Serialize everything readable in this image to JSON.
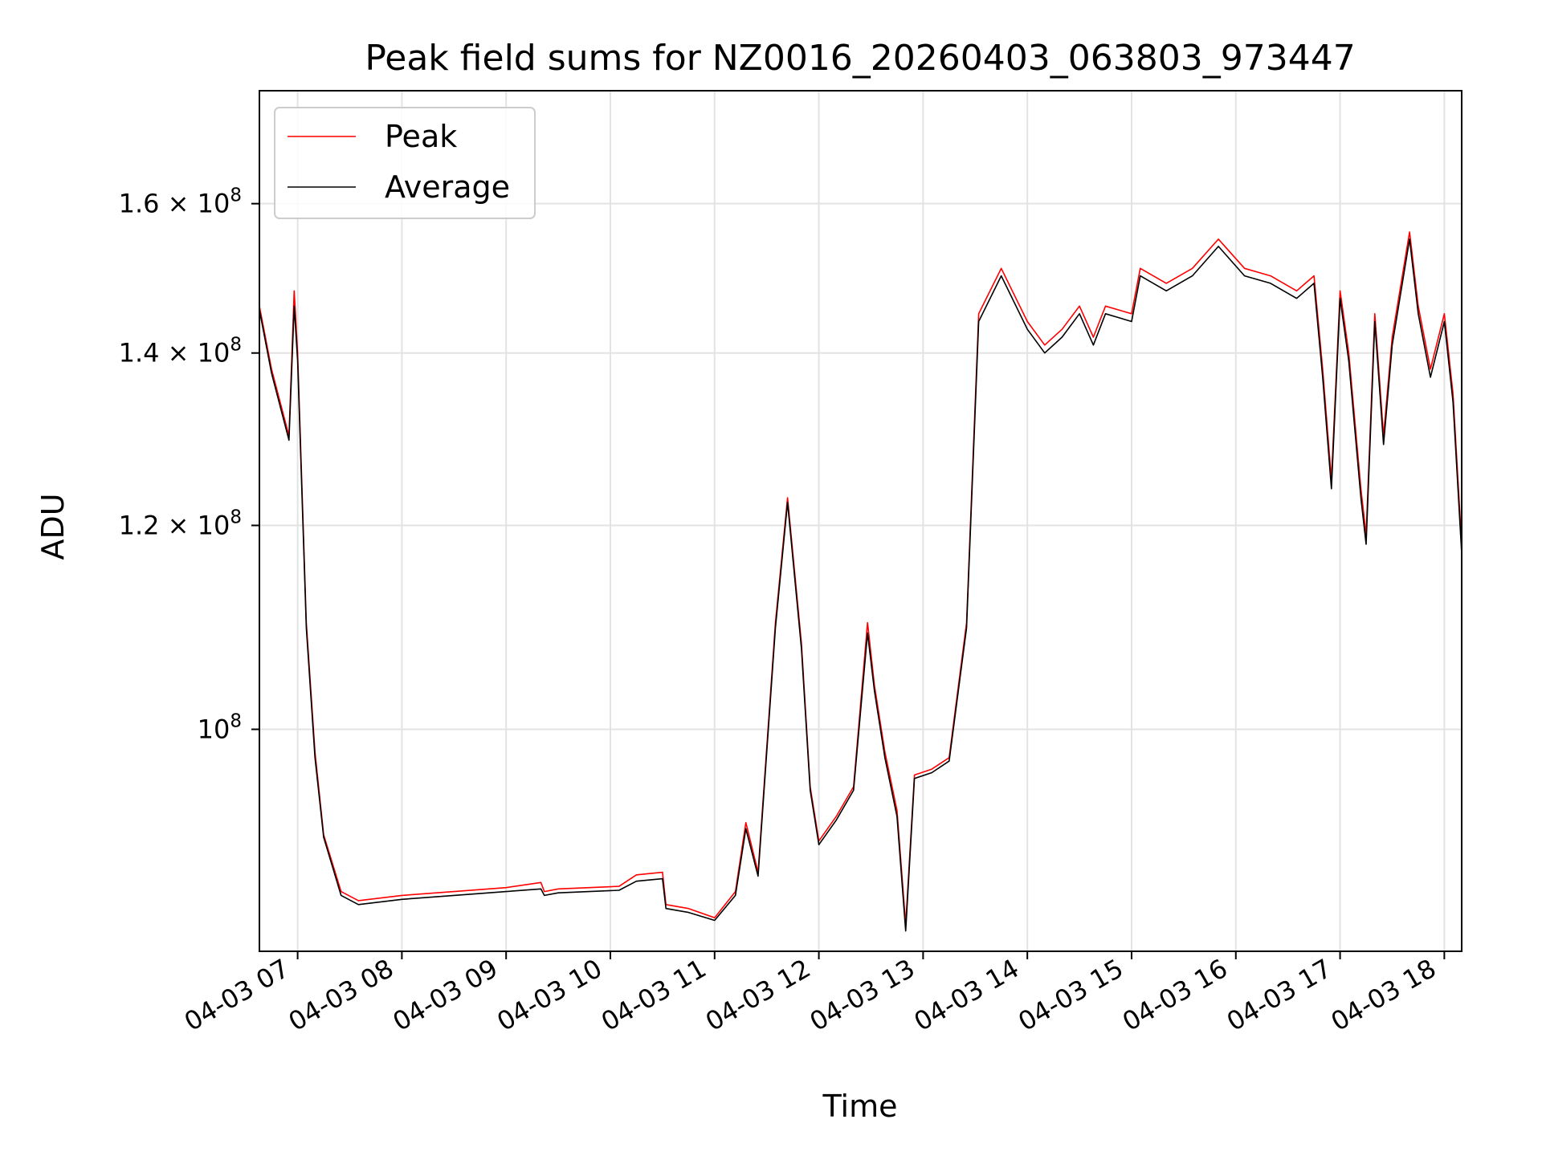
{
  "chart_data": {
    "type": "line",
    "title": "Peak field sums for NZ0016_20260403_063803_973447",
    "xlabel": "Time",
    "ylabel": "ADU",
    "y_scale": "log",
    "ylim": [
      82000000,
      177000000
    ],
    "xlim": [
      "04-03 06:38",
      "04-03 18:10"
    ],
    "grid": true,
    "legend_position": "upper-left",
    "x_ticks": [
      "04-03 07",
      "04-03 08",
      "04-03 09",
      "04-03 10",
      "04-03 11",
      "04-03 12",
      "04-03 13",
      "04-03 14",
      "04-03 15",
      "04-03 16",
      "04-03 17",
      "04-03 18"
    ],
    "y_ticks": [
      {
        "value": 100000000,
        "mantissa": "",
        "exponent": "8"
      },
      {
        "value": 120000000,
        "mantissa": "1.2",
        "exponent": "8"
      },
      {
        "value": 140000000,
        "mantissa": "1.4",
        "exponent": "8"
      },
      {
        "value": 160000000,
        "mantissa": "1.6",
        "exponent": "8"
      }
    ],
    "series": [
      {
        "name": "Peak",
        "color": "#ff0000",
        "points": [
          [
            "04-03 06:38",
            146000000
          ],
          [
            "04-03 06:45",
            138000000
          ],
          [
            "04-03 06:55",
            130000000
          ],
          [
            "04-03 06:58",
            148000000
          ],
          [
            "04-03 07:00",
            140000000
          ],
          [
            "04-03 07:05",
            110000000
          ],
          [
            "04-03 07:10",
            98000000
          ],
          [
            "04-03 07:15",
            91000000
          ],
          [
            "04-03 07:25",
            86500000
          ],
          [
            "04-03 07:35",
            85800000
          ],
          [
            "04-03 08:00",
            86200000
          ],
          [
            "04-03 08:30",
            86500000
          ],
          [
            "04-03 09:00",
            86800000
          ],
          [
            "04-03 09:20",
            87200000
          ],
          [
            "04-03 09:22",
            86500000
          ],
          [
            "04-03 09:30",
            86700000
          ],
          [
            "04-03 10:05",
            86900000
          ],
          [
            "04-03 10:15",
            87800000
          ],
          [
            "04-03 10:30",
            88000000
          ],
          [
            "04-03 10:32",
            85500000
          ],
          [
            "04-03 10:45",
            85200000
          ],
          [
            "04-03 11:00",
            84500000
          ],
          [
            "04-03 11:12",
            86500000
          ],
          [
            "04-03 11:18",
            92000000
          ],
          [
            "04-03 11:25",
            88000000
          ],
          [
            "04-03 11:35",
            110000000
          ],
          [
            "04-03 11:42",
            123000000
          ],
          [
            "04-03 11:50",
            108000000
          ],
          [
            "04-03 11:55",
            95000000
          ],
          [
            "04-03 12:00",
            90500000
          ],
          [
            "04-03 12:10",
            92500000
          ],
          [
            "04-03 12:20",
            95000000
          ],
          [
            "04-03 12:28",
            110000000
          ],
          [
            "04-03 12:32",
            104000000
          ],
          [
            "04-03 12:38",
            98000000
          ],
          [
            "04-03 12:45",
            93000000
          ],
          [
            "04-03 12:50",
            84000000
          ],
          [
            "04-03 12:55",
            96000000
          ],
          [
            "04-03 13:05",
            96500000
          ],
          [
            "04-03 13:15",
            97500000
          ],
          [
            "04-03 13:25",
            110000000
          ],
          [
            "04-03 13:32",
            145000000
          ],
          [
            "04-03 13:45",
            151000000
          ],
          [
            "04-03 14:00",
            144000000
          ],
          [
            "04-03 14:10",
            141000000
          ],
          [
            "04-03 14:20",
            143000000
          ],
          [
            "04-03 14:30",
            146000000
          ],
          [
            "04-03 14:38",
            142000000
          ],
          [
            "04-03 14:45",
            146000000
          ],
          [
            "04-03 15:00",
            145000000
          ],
          [
            "04-03 15:05",
            151000000
          ],
          [
            "04-03 15:20",
            149000000
          ],
          [
            "04-03 15:35",
            151000000
          ],
          [
            "04-03 15:50",
            155000000
          ],
          [
            "04-03 16:05",
            151000000
          ],
          [
            "04-03 16:20",
            150000000
          ],
          [
            "04-03 16:35",
            148000000
          ],
          [
            "04-03 16:45",
            150000000
          ],
          [
            "04-03 16:50",
            138000000
          ],
          [
            "04-03 16:55",
            125000000
          ],
          [
            "04-03 17:00",
            148000000
          ],
          [
            "04-03 17:05",
            140000000
          ],
          [
            "04-03 17:12",
            124000000
          ],
          [
            "04-03 17:15",
            119000000
          ],
          [
            "04-03 17:20",
            145000000
          ],
          [
            "04-03 17:25",
            130000000
          ],
          [
            "04-03 17:30",
            142000000
          ],
          [
            "04-03 17:40",
            156000000
          ],
          [
            "04-03 17:45",
            146000000
          ],
          [
            "04-03 17:52",
            138000000
          ],
          [
            "04-03 18:00",
            145000000
          ],
          [
            "04-03 18:05",
            135000000
          ],
          [
            "04-03 18:10",
            118000000
          ]
        ]
      },
      {
        "name": "Average",
        "color": "#000000",
        "points": [
          [
            "04-03 06:38",
            145500000
          ],
          [
            "04-03 06:45",
            137500000
          ],
          [
            "04-03 06:55",
            129500000
          ],
          [
            "04-03 06:58",
            146000000
          ],
          [
            "04-03 07:00",
            139000000
          ],
          [
            "04-03 07:05",
            109500000
          ],
          [
            "04-03 07:10",
            97500000
          ],
          [
            "04-03 07:15",
            90800000
          ],
          [
            "04-03 07:25",
            86200000
          ],
          [
            "04-03 07:35",
            85500000
          ],
          [
            "04-03 08:00",
            85900000
          ],
          [
            "04-03 08:30",
            86200000
          ],
          [
            "04-03 09:00",
            86500000
          ],
          [
            "04-03 09:20",
            86700000
          ],
          [
            "04-03 09:22",
            86200000
          ],
          [
            "04-03 09:30",
            86400000
          ],
          [
            "04-03 10:05",
            86600000
          ],
          [
            "04-03 10:15",
            87300000
          ],
          [
            "04-03 10:30",
            87500000
          ],
          [
            "04-03 10:32",
            85200000
          ],
          [
            "04-03 10:45",
            84900000
          ],
          [
            "04-03 11:00",
            84300000
          ],
          [
            "04-03 11:12",
            86200000
          ],
          [
            "04-03 11:18",
            91500000
          ],
          [
            "04-03 11:25",
            87700000
          ],
          [
            "04-03 11:35",
            109500000
          ],
          [
            "04-03 11:42",
            122500000
          ],
          [
            "04-03 11:50",
            107500000
          ],
          [
            "04-03 11:55",
            94700000
          ],
          [
            "04-03 12:00",
            90200000
          ],
          [
            "04-03 12:10",
            92200000
          ],
          [
            "04-03 12:20",
            94700000
          ],
          [
            "04-03 12:28",
            109000000
          ],
          [
            "04-03 12:32",
            103500000
          ],
          [
            "04-03 12:38",
            97500000
          ],
          [
            "04-03 12:45",
            92500000
          ],
          [
            "04-03 12:50",
            83500000
          ],
          [
            "04-03 12:55",
            95700000
          ],
          [
            "04-03 13:05",
            96200000
          ],
          [
            "04-03 13:15",
            97200000
          ],
          [
            "04-03 13:25",
            109500000
          ],
          [
            "04-03 13:32",
            144000000
          ],
          [
            "04-03 13:45",
            150000000
          ],
          [
            "04-03 14:00",
            143000000
          ],
          [
            "04-03 14:10",
            140000000
          ],
          [
            "04-03 14:20",
            142000000
          ],
          [
            "04-03 14:30",
            145000000
          ],
          [
            "04-03 14:38",
            141000000
          ],
          [
            "04-03 14:45",
            145000000
          ],
          [
            "04-03 15:00",
            144000000
          ],
          [
            "04-03 15:05",
            150000000
          ],
          [
            "04-03 15:20",
            148000000
          ],
          [
            "04-03 15:35",
            150000000
          ],
          [
            "04-03 15:50",
            154000000
          ],
          [
            "04-03 16:05",
            150000000
          ],
          [
            "04-03 16:20",
            149000000
          ],
          [
            "04-03 16:35",
            147000000
          ],
          [
            "04-03 16:45",
            149000000
          ],
          [
            "04-03 16:50",
            137000000
          ],
          [
            "04-03 16:55",
            124000000
          ],
          [
            "04-03 17:00",
            147000000
          ],
          [
            "04-03 17:05",
            139000000
          ],
          [
            "04-03 17:12",
            123000000
          ],
          [
            "04-03 17:15",
            118000000
          ],
          [
            "04-03 17:20",
            144000000
          ],
          [
            "04-03 17:25",
            129000000
          ],
          [
            "04-03 17:30",
            141000000
          ],
          [
            "04-03 17:40",
            155000000
          ],
          [
            "04-03 17:45",
            145000000
          ],
          [
            "04-03 17:52",
            137000000
          ],
          [
            "04-03 18:00",
            144000000
          ],
          [
            "04-03 18:05",
            134000000
          ],
          [
            "04-03 18:10",
            117000000
          ]
        ]
      }
    ]
  }
}
